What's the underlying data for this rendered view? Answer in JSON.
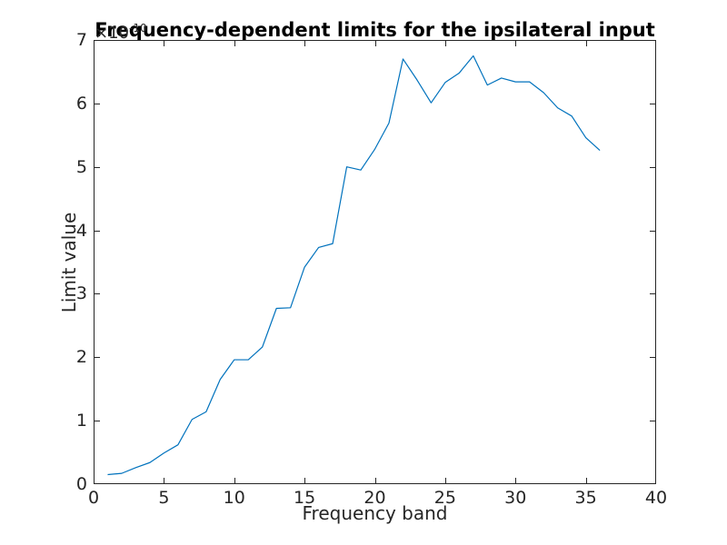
{
  "figure": {
    "background_color": "#ffffff"
  },
  "chart_data": {
    "type": "line",
    "title": "Frequency-dependent limits for the ipsilateral input",
    "xlabel": "Frequency band",
    "ylabel": "Limit value",
    "y_axis_multiplier_base": "×10",
    "y_axis_multiplier_exponent": "-10",
    "xlim": [
      0,
      40
    ],
    "ylim": [
      0,
      7
    ],
    "x_ticks": [
      0,
      5,
      10,
      15,
      20,
      25,
      30,
      35,
      40
    ],
    "y_ticks": [
      0,
      1,
      2,
      3,
      4,
      5,
      6,
      7
    ],
    "grid": false,
    "legend_position": "none",
    "box": true,
    "tick_direction": "in",
    "line_color": "#0072BD",
    "axis_color": "#262626",
    "x": [
      1,
      2,
      3,
      4,
      5,
      6,
      7,
      8,
      9,
      10,
      11,
      12,
      13,
      14,
      15,
      16,
      17,
      18,
      19,
      20,
      21,
      22,
      23,
      24,
      25,
      26,
      27,
      28,
      29,
      30,
      31,
      32,
      33,
      34,
      35,
      36
    ],
    "y": [
      0.15,
      0.17,
      0.26,
      0.34,
      0.49,
      0.62,
      1.02,
      1.14,
      1.65,
      1.96,
      1.96,
      2.16,
      2.77,
      2.78,
      3.42,
      3.73,
      3.79,
      5.0,
      4.95,
      5.28,
      5.69,
      6.7,
      6.37,
      6.01,
      6.33,
      6.48,
      6.75,
      6.29,
      6.4,
      6.34,
      6.34,
      6.17,
      5.93,
      5.8,
      5.46,
      5.26
    ]
  }
}
